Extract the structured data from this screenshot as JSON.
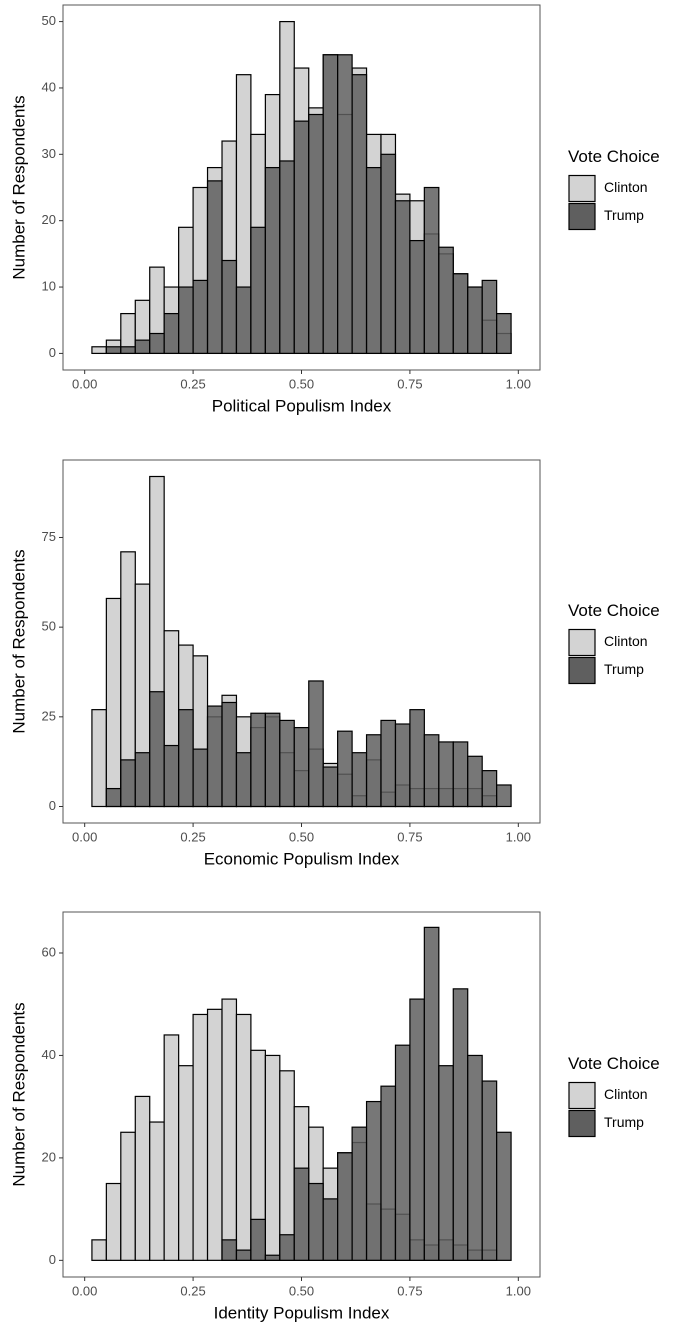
{
  "chart_data": [
    {
      "type": "histogram",
      "x_label": "Political Populism Index",
      "y_label": "Number of Respondents",
      "legend_title": "Vote Choice",
      "bins": [
        0.0167,
        0.05,
        0.0833,
        0.1167,
        0.15,
        0.1833,
        0.2167,
        0.25,
        0.2833,
        0.3167,
        0.35,
        0.3833,
        0.4167,
        0.45,
        0.4833,
        0.5167,
        0.55,
        0.5833,
        0.6167,
        0.65,
        0.6833,
        0.7167,
        0.75,
        0.7833,
        0.8167,
        0.85,
        0.8833,
        0.9167,
        0.95,
        0.9833
      ],
      "series": [
        {
          "name": "Clinton",
          "color": "#d3d3d3",
          "values": [
            1,
            2,
            6,
            8,
            13,
            10,
            19,
            25,
            28,
            32,
            42,
            33,
            39,
            50,
            43,
            37,
            45,
            36,
            43,
            33,
            33,
            24,
            23,
            18,
            15,
            12,
            10,
            5,
            3
          ]
        },
        {
          "name": "Trump",
          "color": "#5f5f5f",
          "values": [
            0,
            1,
            1,
            2,
            3,
            6,
            10,
            11,
            26,
            14,
            10,
            19,
            28,
            29,
            35,
            36,
            45,
            45,
            42,
            28,
            30,
            23,
            17,
            25,
            16,
            12,
            10,
            11,
            6
          ]
        }
      ],
      "xlim": [
        -0.05,
        1.05
      ],
      "ylim": [
        -2.5,
        52.5
      ],
      "xticks": [
        {
          "value": 0,
          "label": "0.00"
        },
        {
          "value": 0.25,
          "label": "0.25"
        },
        {
          "value": 0.5,
          "label": "0.50"
        },
        {
          "value": 0.75,
          "label": "0.75"
        },
        {
          "value": 1,
          "label": "1.00"
        }
      ],
      "yticks": [
        0,
        10,
        20,
        30,
        40,
        50
      ]
    },
    {
      "type": "histogram",
      "x_label": "Economic Populism Index",
      "y_label": "Number of Respondents",
      "legend_title": "Vote Choice",
      "bins": [
        0.0167,
        0.05,
        0.0833,
        0.1167,
        0.15,
        0.1833,
        0.2167,
        0.25,
        0.2833,
        0.3167,
        0.35,
        0.3833,
        0.4167,
        0.45,
        0.4833,
        0.5167,
        0.55,
        0.5833,
        0.6167,
        0.65,
        0.6833,
        0.7167,
        0.75,
        0.7833,
        0.8167,
        0.85,
        0.8833,
        0.9167,
        0.95,
        0.9833
      ],
      "series": [
        {
          "name": "Clinton",
          "color": "#d3d3d3",
          "values": [
            27,
            58,
            71,
            62,
            92,
            49,
            45,
            42,
            25,
            31,
            25,
            22,
            25,
            15,
            10,
            16,
            12,
            9,
            3,
            13,
            4,
            6,
            5,
            5,
            5,
            5,
            5,
            3,
            0
          ]
        },
        {
          "name": "Trump",
          "color": "#5f5f5f",
          "values": [
            0,
            5,
            13,
            15,
            32,
            17,
            27,
            16,
            28,
            29,
            15,
            26,
            26,
            24,
            22,
            35,
            11,
            21,
            15,
            20,
            24,
            23,
            27,
            20,
            18,
            18,
            14,
            10,
            6
          ]
        }
      ],
      "xlim": [
        -0.05,
        1.05
      ],
      "ylim": [
        -4.6,
        96.6
      ],
      "xticks": [
        {
          "value": 0,
          "label": "0.00"
        },
        {
          "value": 0.25,
          "label": "0.25"
        },
        {
          "value": 0.5,
          "label": "0.50"
        },
        {
          "value": 0.75,
          "label": "0.75"
        },
        {
          "value": 1,
          "label": "1.00"
        }
      ],
      "yticks": [
        0,
        25,
        50,
        75
      ]
    },
    {
      "type": "histogram",
      "x_label": "Identity Populism Index",
      "y_label": "Number of Respondents",
      "legend_title": "Vote Choice",
      "bins": [
        0.0167,
        0.05,
        0.0833,
        0.1167,
        0.15,
        0.1833,
        0.2167,
        0.25,
        0.2833,
        0.3167,
        0.35,
        0.3833,
        0.4167,
        0.45,
        0.4833,
        0.5167,
        0.55,
        0.5833,
        0.6167,
        0.65,
        0.6833,
        0.7167,
        0.75,
        0.7833,
        0.8167,
        0.85,
        0.8833,
        0.9167,
        0.95,
        0.9833
      ],
      "series": [
        {
          "name": "Clinton",
          "color": "#d3d3d3",
          "values": [
            4,
            15,
            25,
            32,
            27,
            44,
            38,
            48,
            49,
            51,
            48,
            41,
            40,
            37,
            30,
            26,
            18,
            21,
            23,
            11,
            10,
            9,
            4,
            3,
            4,
            3,
            2,
            2,
            0
          ]
        },
        {
          "name": "Trump",
          "color": "#5f5f5f",
          "values": [
            0,
            0,
            0,
            0,
            0,
            0,
            0,
            0,
            0,
            4,
            2,
            8,
            1,
            5,
            18,
            15,
            12,
            21,
            26,
            31,
            34,
            42,
            51,
            65,
            38,
            53,
            40,
            35,
            25
          ]
        }
      ],
      "xlim": [
        -0.05,
        1.05
      ],
      "ylim": [
        -3.25,
        68
      ],
      "xticks": [
        {
          "value": 0,
          "label": "0.00"
        },
        {
          "value": 0.25,
          "label": "0.25"
        },
        {
          "value": 0.5,
          "label": "0.50"
        },
        {
          "value": 0.75,
          "label": "0.75"
        },
        {
          "value": 1,
          "label": "1.00"
        }
      ],
      "yticks": [
        0,
        20,
        40,
        60
      ]
    }
  ]
}
